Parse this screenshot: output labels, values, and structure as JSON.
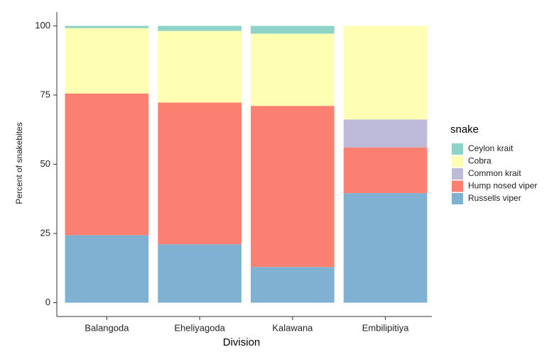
{
  "chart_data": {
    "type": "stacked_bar",
    "x_label": "Division",
    "y_label": "Percent of snakebites",
    "legend_title": "snake",
    "legend_position": "right",
    "categories": [
      "Balangoda",
      "Eheliyagoda",
      "Kalawana",
      "Embilipitiya"
    ],
    "series": [
      {
        "name": "Ceylon krait",
        "color": "#8dd3c7",
        "values": [
          0.8,
          1.8,
          2.8,
          0
        ]
      },
      {
        "name": "Cobra",
        "color": "#ffffb3",
        "values": [
          23.6,
          25.9,
          26.1,
          33.8
        ]
      },
      {
        "name": "Common krait",
        "color": "#bebada",
        "values": [
          0,
          0,
          0,
          10.1
        ]
      },
      {
        "name": "Hump nosed viper",
        "color": "#fb8072",
        "values": [
          51.2,
          51.2,
          58.2,
          16.5
        ]
      },
      {
        "name": "Russells viper",
        "color": "#80b1d3",
        "values": [
          24.4,
          21.1,
          12.9,
          39.6
        ]
      }
    ],
    "ylim": [
      -5,
      105
    ],
    "yticks": [
      0,
      25,
      50,
      75,
      100
    ],
    "grid": false
  }
}
